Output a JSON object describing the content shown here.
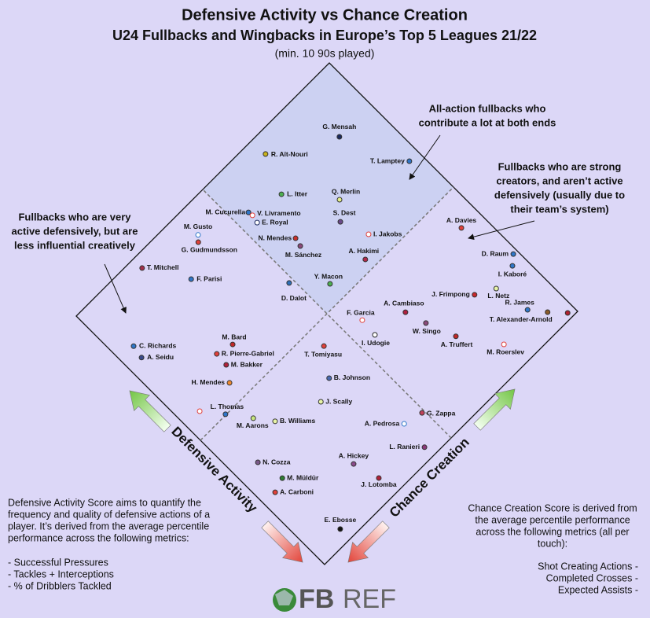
{
  "chart_data": {
    "type": "scatter",
    "title": "Defensive Activity vs Chance Creation",
    "subtitle": "U24 Fullbacks and Wingbacks in Europe’s Top 5 Leagues 21/22",
    "note": "(min. 10 90s played)",
    "xlabel": "Defensive Activity",
    "ylabel": "Chance Creation",
    "xlim": [
      0,
      100
    ],
    "ylim": [
      0,
      100
    ],
    "annotations": [
      [
        "All-action fullbacks who",
        "contribute a lot at both ends"
      ],
      [
        "Fullbacks who are strong",
        "creators, and aren’t active",
        "defensively (usually due to",
        "their team’s system)"
      ],
      [
        "Fullbacks who are very",
        "active defensively, but are",
        "less influential creatively"
      ]
    ],
    "categories": [
      "G. Mensah",
      "R. Aït-Nouri",
      "T. Lamptey",
      "L. Itter",
      "Q. Merlin",
      "M. Cucurella",
      "V. Livramento",
      "E. Royal",
      "S. Dest",
      "I. Jakobs",
      "M. Gusto",
      "G. Gudmundsson",
      "N. Mendes",
      "M. Sánchez",
      "A. Hakimi",
      "T. Mitchell",
      "F. Parisi",
      "D. Dalot",
      "Y. Macon",
      "A. Davies",
      "D. Raum",
      "I. Kaboré",
      "L. Netz",
      "J. Frimpong",
      "R. James",
      "T. Alexander-Arnold",
      null,
      "A. Cambiaso",
      "F. Garcia",
      "W. Singo",
      "I. Udogie",
      "A. Truffert",
      "M. Roerslev",
      "T. Tomiyasu",
      "C. Richards",
      "A. Seidu",
      "M. Bard",
      "R. Pierre-Gabriel",
      "M. Bakker",
      "H. Mendes",
      "B. Johnson",
      "J. Scally",
      "L. Thomas",
      null,
      "M. Aarons",
      "B. Williams",
      "G. Zappa",
      "A. Pedrosa",
      "L. Ranieri",
      "N. Cozza",
      "A. Hickey",
      "M. Müldür",
      "J. Lotomba",
      "A. Carboni",
      "E. Ebosse"
    ],
    "x": [
      83.1,
      94.5,
      64.1,
      83.2,
      70.4,
      86.2,
      84.8,
      82.4,
      65.8,
      57.6,
      91.8,
      90.3,
      71.5,
      69.0,
      53.2,
      96.4,
      84.3,
      63.8,
      55.4,
      40.2,
      24.5,
      22.3,
      21.0,
      24.1,
      10.4,
      5.9,
      1.7,
      34.5,
      41.6,
      28.2,
      36.1,
      19.5,
      8.2,
      44.1,
      82.4,
      78.5,
      62.8,
      64.1,
      60.0,
      55.7,
      36.6,
      33.5,
      50.2,
      56.0,
      43.8,
      38.8,
      10.9,
      12.3,
      3.5,
      34.0,
      14.4,
      25.9,
      6.5,
      24.5,
      4.0
    ],
    "values": [
      87.4,
      69.4,
      96.4,
      64.6,
      75.0,
      54.5,
      54.7,
      54.2,
      70.8,
      73.9,
      40.1,
      38.7,
      58.7,
      58.1,
      68.3,
      22.5,
      30.0,
      48.6,
      56.5,
      93.5,
      98.6,
      96.1,
      88.4,
      82.9,
      90.4,
      93.9,
      97.7,
      65.8,
      55.7,
      67.7,
      55.3,
      71.0,
      78.9,
      43.0,
      5.4,
      4.7,
      25.3,
      20.3,
      20.0,
      17.1,
      37.7,
      31.4,
      10.1,
      5.6,
      14.8,
      18.5,
      49.2,
      43.5,
      42.9,
      7.0,
      25.6,
      8.7,
      27.8,
      4.5,
      10.1
    ],
    "colors": [
      "#1b2a5e",
      "#c9b21a",
      "#2f76c8",
      "#4caf50",
      "#e4f08a",
      "#2f76c8",
      "#ffffff",
      "#ffffff",
      "#6a4a8a",
      "#ffffff",
      "#ffffff",
      "#e0403a",
      "#c9302c",
      "#8a4a7a",
      "#b0284a",
      "#a0304a",
      "#2f76c8",
      "#2f6fb8",
      "#4caf50",
      "#e0403a",
      "#2f76c8",
      "#2f76c8",
      "#e8f4a8",
      "#c8282c",
      "#2f76c8",
      "#8a5a2a",
      "#b02030",
      "#b02040",
      "#ffffff",
      "#8a4a7a",
      "#ffffff",
      "#c02828",
      "#ffffff",
      "#e0403a",
      "#2f76c8",
      "#3a4a8a",
      "#c02828",
      "#e0403a",
      "#b0203a",
      "#f08a30",
      "#4a6ab0",
      "#e8f4a8",
      "#2f76c8",
      "#ffffff",
      "#c8e880",
      "#e8f4a8",
      "#c0405a",
      "#ffffff",
      "#8a3a7a",
      "#7a5a8a",
      "#8a4a8a",
      "#2e7d32",
      "#b0203a",
      "#e0403a",
      "#111111"
    ],
    "edgecolors": [
      "#333",
      "#333",
      "#333",
      "#333",
      "#333",
      "#333",
      "#e0403a",
      "#1b2a5e",
      "#333",
      "#e0403a",
      "#2f76c8",
      "#333",
      "#333",
      "#333",
      "#333",
      "#333",
      "#333",
      "#333",
      "#333",
      "#333",
      "#333",
      "#333",
      "#333",
      "#333",
      "#333",
      "#333",
      "#333",
      "#333",
      "#e0403a",
      "#333",
      "#222",
      "#333",
      "#e0403a",
      "#333",
      "#333",
      "#333",
      "#333",
      "#333",
      "#333",
      "#333",
      "#333",
      "#333",
      "#333",
      "#e0403a",
      "#333",
      "#333",
      "#333",
      "#2f76c8",
      "#333",
      "#333",
      "#333",
      "#333",
      "#333",
      "#333",
      "#333"
    ],
    "left_text": [
      "Defensive Activity Score aims to quantify the",
      "frequency and quality of defensive actions of a",
      "player. It’s derived from the average percentile",
      "performance across the following metrics:"
    ],
    "left_metrics": [
      "- Successful Pressures",
      "- Tackles + Interceptions",
      "- % of Dribblers Tackled"
    ],
    "right_text": [
      "Chance Creation Score is derived from",
      "the average percentile performance",
      "across the following metrics (all per",
      "touch):"
    ],
    "right_metrics": [
      "Shot Creating Actions -",
      "Completed Crosses -",
      "Expected Assists -"
    ],
    "logo": [
      "FB",
      "REF"
    ]
  }
}
